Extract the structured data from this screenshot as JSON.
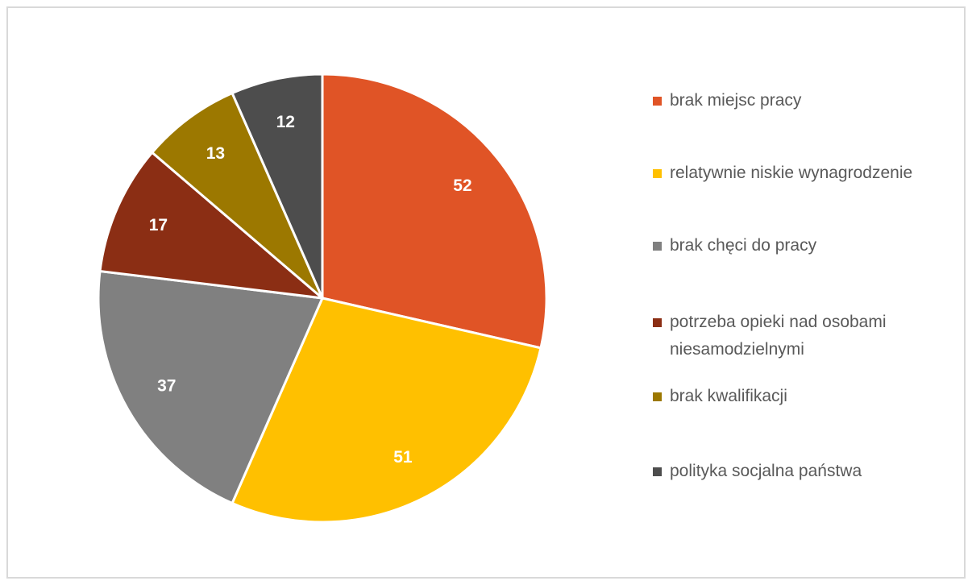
{
  "chart_data": {
    "type": "pie",
    "categories": [
      "brak miejsc pracy",
      "relatywnie niskie wynagrodzenie",
      "brak chęci do pracy",
      "potrzeba opieki nad osobami niesamodzielnymi",
      "brak kwalifikacji",
      "polityka socjalna państwa"
    ],
    "values": [
      52,
      51,
      37,
      17,
      13,
      12
    ],
    "colors": [
      "#e05426",
      "#ffc000",
      "#808080",
      "#8b2e14",
      "#9c7800",
      "#4d4d4d"
    ],
    "legend": "right"
  }
}
